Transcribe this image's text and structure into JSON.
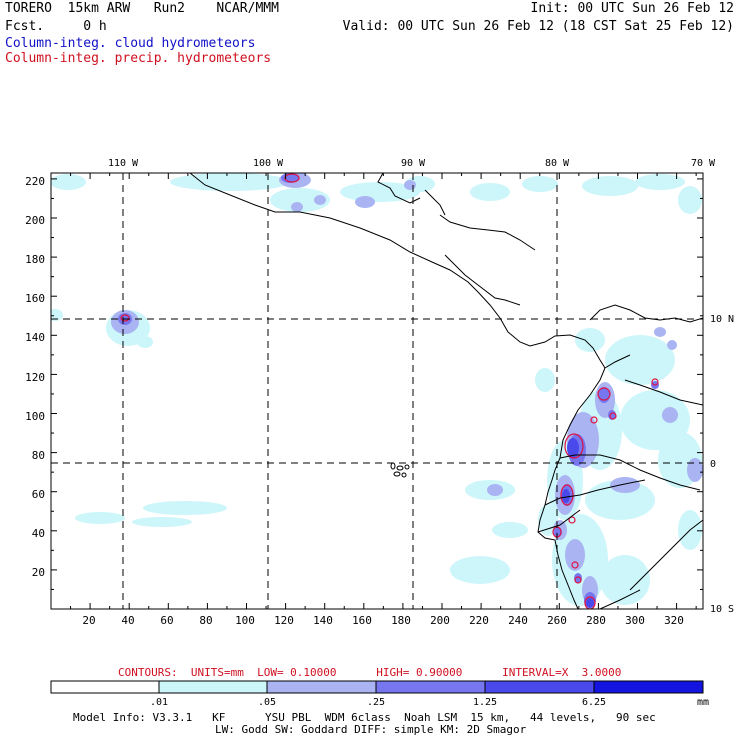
{
  "header": {
    "left_line1": "TORERO  15km ARW   Run2    NCAR/MMM",
    "left_line2": "Fcst.     0 h",
    "init": "Init: 00 UTC Sun 26 Feb 12",
    "valid": "Valid: 00 UTC Sun 26 Feb 12 (18 CST Sat 25 Feb 12)",
    "field1": "Column-integ. cloud hydrometeors",
    "field2": "Column-integ. precip. hydrometeors",
    "field1_color": "#1010c8",
    "field2_color": "#d01020"
  },
  "map": {
    "top_lon_labels": [
      "110 W",
      "100 W",
      "90 W",
      "80 W",
      "70 W"
    ],
    "right_lat_labels": [
      "10 N",
      "0",
      "10 S"
    ],
    "left_ticks": [
      "220",
      "200",
      "180",
      "160",
      "140",
      "120",
      "100",
      "80",
      "60",
      "40",
      "20"
    ],
    "bottom_ticks": [
      "20",
      "40",
      "60",
      "80",
      "100",
      "120",
      "140",
      "160",
      "180",
      "200",
      "220",
      "240",
      "260",
      "280",
      "300",
      "320"
    ]
  },
  "contours_info": "CONTOURS:  UNITS=mm  LOW= 0.10000      HIGH= 0.90000      INTERVAL=X  3.0000",
  "colorbar": {
    "labels": [
      ".01",
      ".05",
      ".25",
      "1.25",
      "6.25"
    ],
    "units": "mm",
    "colors": [
      "#ffffff",
      "#ccf6fa",
      "#aab4f2",
      "#7676ee",
      "#4a4aec",
      "#1414e0"
    ]
  },
  "model_info_line1": "Model Info: V3.3.1   KF      YSU PBL  WDM 6class  Noah LSM  15 km,   44 levels,   90 sec",
  "model_info_line2": "LW: Godd SW: Goddard DIFF: simple KM: 2D Smagor"
}
